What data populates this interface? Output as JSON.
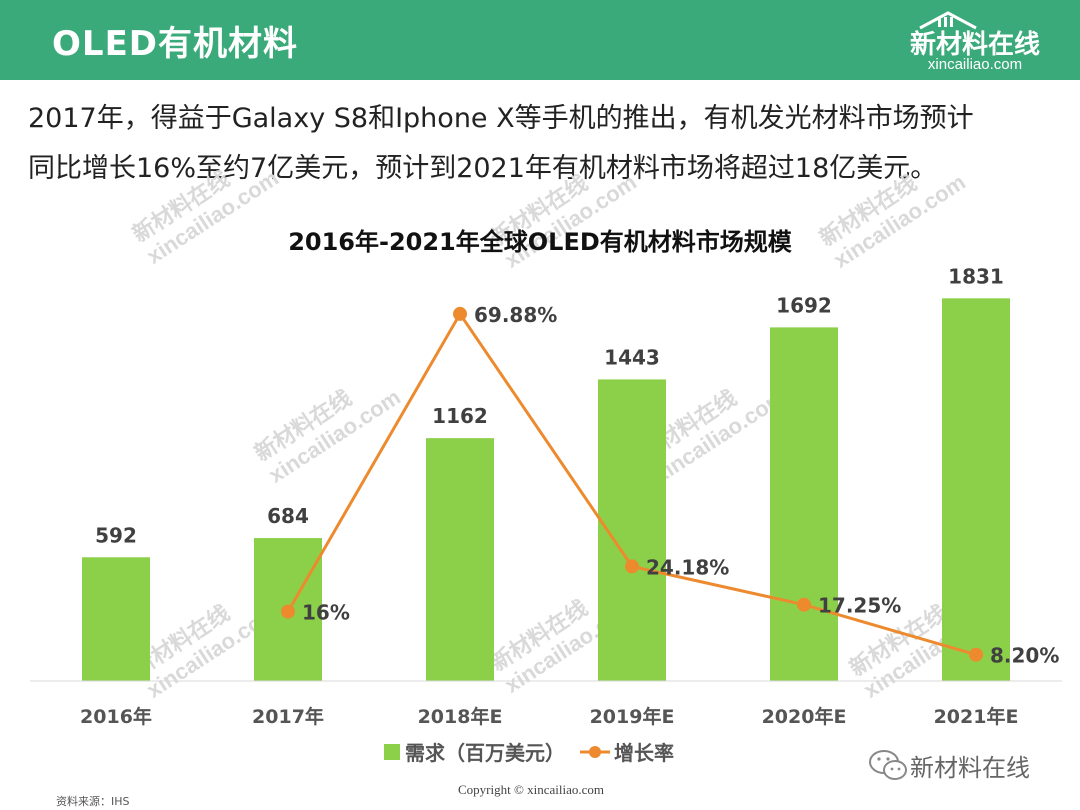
{
  "header": {
    "title": "OLED有机材料",
    "logo_name": "新材料在线",
    "logo_domain": "xincailiao.com"
  },
  "intro": {
    "line1": "2017年，得益于Galaxy  S8和Iphone X等手机的推出，有机发光材料市场预计",
    "line2": "同比增长16%至约7亿美元，预计到2021年有机材料市场将超过18亿美元。"
  },
  "chart_data": {
    "type": "bar",
    "title": "2016年-2021年全球OLED有机材料市场规模",
    "categories": [
      "2016年",
      "2017年",
      "2018年E",
      "2019年E",
      "2020年E",
      "2021年E"
    ],
    "series": [
      {
        "name": "需求（百万美元）",
        "type": "bar",
        "color": "#8cd04a",
        "values": [
          592,
          684,
          1162,
          1443,
          1692,
          1831
        ],
        "labels": [
          "592",
          "684",
          "1162",
          "1443",
          "1692",
          "1831"
        ]
      },
      {
        "name": "增长率",
        "type": "line",
        "color": "#ed8a2e",
        "values": [
          null,
          16,
          69.88,
          24.18,
          17.25,
          8.2
        ],
        "labels": [
          "",
          "16%",
          "69.88%",
          "24.18%",
          "17.25%",
          "8.20%"
        ]
      }
    ],
    "legend": "bottom",
    "grid": false
  },
  "footer": {
    "source": "资料来源：IHS",
    "copyright": "Copyright © xincailiao.com",
    "wechat": "新材料在线"
  },
  "watermark": {
    "line1": "新材料在线",
    "line2": "xincailiao.com"
  },
  "colors": {
    "header_bg": "#3aaa7a",
    "bar": "#8cd04a",
    "line": "#ed8a2e"
  }
}
